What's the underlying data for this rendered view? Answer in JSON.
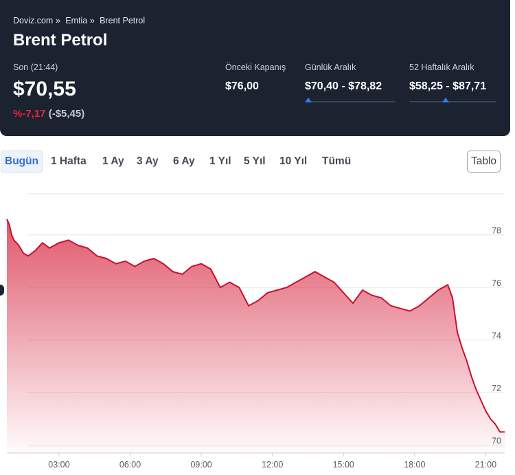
{
  "breadcrumb": [
    "Doviz.com »",
    "Emtia »",
    "Brent Petrol"
  ],
  "title": "Brent Petrol",
  "last": {
    "label": "Son (21:44)",
    "price": "$70,55",
    "change_pct": "%-7,17",
    "change_abs": "(-$5,45)"
  },
  "stats": {
    "prev_close": {
      "label": "Önceki Kapanış",
      "value": "$76,00"
    },
    "daily_range": {
      "label": "Günlük Aralık",
      "value": "$70,40 - $78,82",
      "position": 0.02
    },
    "weekly52_range": {
      "label": "52 Haftalık Aralık",
      "value": "$58,25 - $87,71",
      "position": 0.42
    }
  },
  "tabs": [
    "Bugün",
    "1 Hafta",
    "1 Ay",
    "3 Ay",
    "6 Ay",
    "1 Yıl",
    "5 Yıl",
    "10 Yıl",
    "Tümü"
  ],
  "active_tab": "Bugün",
  "table_button": "Tablo",
  "colors": {
    "header_bg": "#1b2331",
    "line": "#c8102e",
    "negative": "#ee2233",
    "accent": "#2f6fd6",
    "marker": "#2f7bf5"
  },
  "chart_data": {
    "type": "area",
    "x_unit": "hour",
    "xticks": [
      "03:00",
      "06:00",
      "09:00",
      "12:00",
      "15:00",
      "18:00",
      "21:00"
    ],
    "xtick_hours": [
      3,
      6,
      9,
      12,
      15,
      18,
      21
    ],
    "yticks": [
      70,
      72,
      74,
      76,
      78
    ],
    "xlim": [
      0.8,
      21.8
    ],
    "ylim": [
      69.7,
      79.3
    ],
    "grid": true,
    "series": [
      {
        "x": [
          0.8,
          0.9,
          1.0,
          1.1,
          1.3,
          1.5,
          1.7,
          2.0,
          2.3,
          2.6,
          3.0,
          3.4,
          3.8,
          4.2,
          4.6,
          5.0,
          5.4,
          5.8,
          6.2,
          6.6,
          7.0,
          7.4,
          7.8,
          8.2,
          8.6,
          9.0,
          9.4,
          9.8,
          10.2,
          10.6,
          11.0,
          11.4,
          11.8,
          12.2,
          12.6,
          13.0,
          13.4,
          13.8,
          14.2,
          14.6,
          15.0,
          15.4,
          15.8,
          16.2,
          16.6,
          17.0,
          17.4,
          17.8,
          18.2,
          18.6,
          19.0,
          19.4,
          19.6,
          19.8,
          20.0,
          20.2,
          20.4,
          20.6,
          20.8,
          21.0,
          21.2,
          21.4,
          21.6,
          21.8
        ],
        "y": [
          78.6,
          78.4,
          78.0,
          77.8,
          77.6,
          77.3,
          77.2,
          77.4,
          77.7,
          77.5,
          77.7,
          77.8,
          77.6,
          77.5,
          77.2,
          77.1,
          76.9,
          77.0,
          76.8,
          77.0,
          77.1,
          76.9,
          76.6,
          76.5,
          76.8,
          76.9,
          76.7,
          76.0,
          76.2,
          76.0,
          75.3,
          75.5,
          75.8,
          75.9,
          76.0,
          76.2,
          76.4,
          76.6,
          76.4,
          76.2,
          75.8,
          75.4,
          75.9,
          75.7,
          75.6,
          75.3,
          75.2,
          75.1,
          75.3,
          75.6,
          75.9,
          76.1,
          75.6,
          74.3,
          73.7,
          73.2,
          72.6,
          72.1,
          71.7,
          71.3,
          71.0,
          70.8,
          70.5,
          70.5
        ]
      }
    ]
  }
}
